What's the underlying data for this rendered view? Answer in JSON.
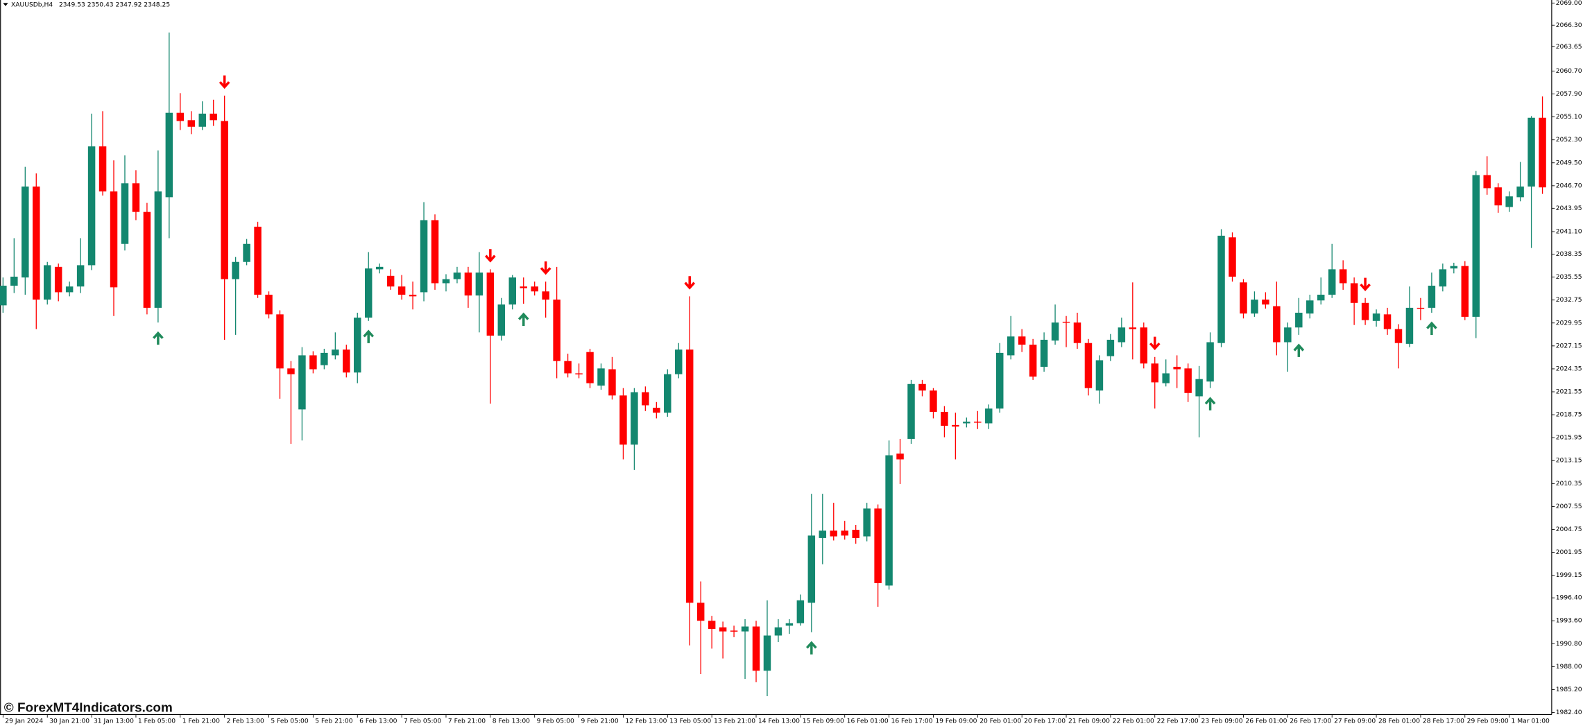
{
  "chart_data": {
    "type": "candlestick",
    "title": "XAUUSDb,H4",
    "quote": "2349.53 2350.43 2347.92 2348.25",
    "watermark": "© ForexMT4Indicators.com",
    "up_color": "#13876f",
    "down_color": "#ff0000",
    "buy_color": "#1f8a5b",
    "sell_color": "#ff0000",
    "categories": [
      "29 Jan 2024",
      null,
      null,
      null,
      "30 Jan 21:00",
      null,
      null,
      null,
      "31 Jan 13:00",
      null,
      null,
      null,
      "1 Feb 05:00",
      null,
      null,
      null,
      "1 Feb 21:00",
      null,
      null,
      null,
      "2 Feb 13:00",
      null,
      null,
      null,
      "5 Feb 05:00",
      null,
      null,
      null,
      "5 Feb 21:00",
      null,
      null,
      null,
      "6 Feb 13:00",
      null,
      null,
      null,
      "7 Feb 05:00",
      null,
      null,
      null,
      "7 Feb 21:00",
      null,
      null,
      null,
      "8 Feb 13:00",
      null,
      null,
      null,
      "9 Feb 05:00",
      null,
      null,
      null,
      "9 Feb 21:00",
      null,
      null,
      null,
      "12 Feb 13:00",
      null,
      null,
      null,
      "13 Feb 05:00",
      null,
      null,
      null,
      "13 Feb 21:00",
      null,
      null,
      null,
      "14 Feb 13:00",
      null,
      null,
      null,
      "15 Feb 09:00",
      null,
      null,
      null,
      "16 Feb 01:00",
      null,
      null,
      null,
      "16 Feb 17:00",
      null,
      null,
      null,
      "19 Feb 09:00",
      null,
      null,
      null,
      "20 Feb 01:00",
      null,
      null,
      null,
      "20 Feb 17:00",
      null,
      null,
      null,
      "21 Feb 09:00",
      null,
      null,
      null,
      "22 Feb 01:00",
      null,
      null,
      null,
      "22 Feb 17:00",
      null,
      null,
      null,
      "23 Feb 09:00",
      null,
      null,
      null,
      "26 Feb 01:00",
      null,
      null,
      null,
      "26 Feb 17:00",
      null,
      null,
      null,
      "27 Feb 09:00",
      null,
      null,
      null,
      "28 Feb 01:00",
      null,
      null,
      null,
      "28 Feb 17:00",
      null,
      null,
      null,
      "29 Feb 09:00",
      null,
      null,
      null,
      "1 Mar 01:00",
      null,
      null,
      null
    ],
    "open": [
      2032.1,
      2034.5,
      2035.5,
      2046.6,
      2032.8,
      2036.8,
      2033.7,
      2034.4,
      2037.0,
      2051.5,
      2046.0,
      2039.6,
      2047.0,
      2043.5,
      2031.8,
      2045.3,
      2055.6,
      2054.7,
      2053.9,
      2055.5,
      2054.6,
      2035.3,
      2037.4,
      2041.7,
      2033.4,
      2031.0,
      2024.4,
      2019.4,
      2026.0,
      2024.8,
      2026.0,
      2026.7,
      2023.9,
      2030.6,
      2036.5,
      2035.7,
      2034.4,
      2033.4,
      2033.7,
      2042.5,
      2034.8,
      2035.3,
      2036.1,
      2033.3,
      2036.1,
      2028.4,
      2032.2,
      2034.4,
      2034.4,
      2033.8,
      2032.8,
      2025.3,
      2023.8,
      2026.4,
      2022.3,
      2024.3,
      2021.1,
      2015.1,
      2021.5,
      2019.6,
      2019.0,
      2023.7,
      2026.7,
      1995.8,
      1993.6,
      1992.8,
      1992.4,
      1992.3,
      1992.9,
      1987.5,
      1991.8,
      1993.0,
      1993.3,
      1995.8,
      2003.7,
      2004.6,
      2004.6,
      2004.7,
      2003.9,
      2007.3,
      1997.9,
      2014.0,
      2015.8,
      2022.5,
      2021.7,
      2019.1,
      2017.5,
      2017.7,
      2017.9,
      2017.7,
      2019.5,
      2026.0,
      2028.3,
      2027.3,
      2024.6,
      2027.8,
      2030.1,
      2030.0,
      2027.5,
      2021.7,
      2025.9,
      2027.6,
      2029.4,
      2029.4,
      2025.0,
      2022.6,
      2024.6,
      2024.4,
      2021.0,
      2022.8,
      2027.5,
      2040.4,
      2034.9,
      2031.1,
      2032.8,
      2032.0,
      2027.6,
      2029.4,
      2031.1,
      2032.7,
      2033.4,
      2036.5,
      2034.8,
      2032.4,
      2030.2,
      2031.0,
      2029.2,
      2027.4,
      2031.8,
      2031.8,
      2034.4,
      2036.6,
      2036.9,
      2030.7,
      2048.0,
      2046.5,
      2044.1,
      2045.3,
      2046.6,
      2055.0
    ],
    "high": [
      2035.5,
      2040.3,
      2049.0,
      2048.2,
      2037.4,
      2037.2,
      2035.0,
      2040.3,
      2055.5,
      2055.8,
      2049.8,
      2050.4,
      2048.6,
      2044.6,
      2051.0,
      2065.4,
      2058.0,
      2055.8,
      2057.0,
      2057.2,
      2057.7,
      2038.0,
      2040.2,
      2042.3,
      2033.8,
      2031.5,
      2025.3,
      2027.0,
      2026.5,
      2026.8,
      2028.8,
      2027.3,
      2031.2,
      2038.6,
      2037.2,
      2036.5,
      2035.8,
      2035.0,
      2044.7,
      2043.2,
      2035.9,
      2036.8,
      2036.8,
      2038.6,
      2036.5,
      2033.0,
      2035.8,
      2035.5,
      2035.0,
      2035.0,
      2036.8,
      2026.2,
      2025.0,
      2026.8,
      2025.0,
      2025.8,
      2022.0,
      2022.0,
      2022.2,
      2020.3,
      2024.3,
      2027.5,
      2033.2,
      1998.4,
      1994.2,
      1993.5,
      1993.0,
      1993.8,
      1993.6,
      1996.1,
      1993.8,
      1993.8,
      1996.8,
      2009.1,
      2009.1,
      2008.0,
      2005.8,
      2005.3,
      2008.0,
      2007.8,
      2015.6,
      2015.8,
      2023.0,
      2023.0,
      2022.0,
      2019.8,
      2019.0,
      2018.4,
      2019.2,
      2020.0,
      2027.5,
      2030.8,
      2029.2,
      2028.0,
      2028.8,
      2032.2,
      2030.8,
      2031.2,
      2028.0,
      2026.0,
      2028.6,
      2030.6,
      2034.9,
      2030.0,
      2025.8,
      2025.5,
      2026.0,
      2025.0,
      2024.7,
      2028.8,
      2041.4,
      2041.0,
      2035.3,
      2033.8,
      2033.7,
      2035.0,
      2030.0,
      2033.0,
      2033.4,
      2035.5,
      2039.6,
      2037.6,
      2035.5,
      2033.0,
      2031.6,
      2031.8,
      2029.8,
      2034.4,
      2033.0,
      2036.1,
      2037.2,
      2037.3,
      2037.5,
      2048.5,
      2050.3,
      2047.0,
      2046.0,
      2049.6,
      2055.2,
      2057.6
    ],
    "low": [
      2031.2,
      2033.6,
      2033.4,
      2029.2,
      2032.2,
      2032.6,
      2033.2,
      2033.6,
      2036.4,
      2045.5,
      2030.8,
      2038.8,
      2042.5,
      2031.0,
      2030.0,
      2040.3,
      2053.5,
      2053.0,
      2053.5,
      2054.0,
      2027.9,
      2028.5,
      2037.0,
      2033.0,
      2030.5,
      2020.7,
      2015.2,
      2015.6,
      2023.8,
      2024.3,
      2025.5,
      2023.3,
      2022.6,
      2030.2,
      2036.0,
      2034.0,
      2032.8,
      2031.6,
      2032.6,
      2034.0,
      2033.8,
      2034.8,
      2031.8,
      2028.8,
      2020.1,
      2027.8,
      2031.6,
      2032.3,
      2033.3,
      2030.6,
      2023.2,
      2023.3,
      2023.2,
      2022.0,
      2021.8,
      2020.6,
      2013.3,
      2012.0,
      2019.2,
      2018.3,
      2018.5,
      2023.2,
      1990.6,
      1987.1,
      1990.2,
      1989.0,
      1991.6,
      1986.5,
      1986.1,
      1984.4,
      1991.0,
      1992.0,
      1993.0,
      1992.2,
      2000.5,
      2003.4,
      2003.5,
      2003.0,
      2003.3,
      1995.3,
      1997.4,
      2010.3,
      2015.2,
      2021.0,
      2018.3,
      2016.0,
      2013.3,
      2017.2,
      2017.0,
      2017.0,
      2019.0,
      2025.5,
      2026.4,
      2023.0,
      2024.0,
      2027.3,
      2027.0,
      2026.8,
      2021.1,
      2020.1,
      2025.3,
      2027.0,
      2025.5,
      2024.4,
      2019.5,
      2022.2,
      2022.0,
      2020.3,
      2016.0,
      2022.0,
      2027.0,
      2035.0,
      2030.5,
      2030.7,
      2031.7,
      2026.0,
      2024.0,
      2028.5,
      2030.5,
      2032.2,
      2033.0,
      2034.0,
      2029.7,
      2029.7,
      2029.5,
      2028.5,
      2024.4,
      2027.0,
      2030.3,
      2031.2,
      2033.8,
      2036.0,
      2030.3,
      2028.1,
      2045.6,
      2043.4,
      2043.5,
      2044.8,
      2039.1,
      2045.7
    ],
    "close": [
      2034.5,
      2035.6,
      2046.6,
      2032.8,
      2037.0,
      2033.7,
      2034.4,
      2037.0,
      2051.5,
      2046.0,
      2034.3,
      2047.0,
      2043.5,
      2031.8,
      2046.0,
      2055.6,
      2054.6,
      2053.9,
      2055.5,
      2054.7,
      2035.3,
      2037.4,
      2039.6,
      2033.4,
      2031.0,
      2024.4,
      2023.7,
      2026.0,
      2024.3,
      2026.3,
      2026.7,
      2023.9,
      2030.6,
      2036.6,
      2036.8,
      2034.4,
      2033.4,
      2033.2,
      2042.5,
      2034.8,
      2035.3,
      2036.1,
      2033.3,
      2036.1,
      2028.4,
      2032.2,
      2035.5,
      2034.2,
      2033.8,
      2032.8,
      2025.3,
      2023.8,
      2023.7,
      2022.6,
      2024.4,
      2021.1,
      2015.1,
      2021.5,
      2019.9,
      2019.0,
      2023.7,
      2026.7,
      1995.8,
      1993.6,
      1992.6,
      1992.3,
      1992.3,
      1992.9,
      1987.5,
      1991.8,
      1992.8,
      1993.3,
      1996.1,
      2004.0,
      2004.6,
      2003.9,
      2004.0,
      2003.7,
      2007.3,
      1998.2,
      2013.8,
      2013.3,
      2022.5,
      2021.7,
      2019.1,
      2017.4,
      2017.3,
      2017.9,
      2017.8,
      2019.5,
      2026.3,
      2028.3,
      2027.3,
      2023.4,
      2027.9,
      2030.0,
      2030.0,
      2027.5,
      2022.0,
      2025.4,
      2027.9,
      2029.4,
      2029.2,
      2025.0,
      2022.7,
      2023.8,
      2024.3,
      2021.4,
      2023.1,
      2027.6,
      2040.6,
      2035.6,
      2031.1,
      2032.8,
      2032.2,
      2027.6,
      2029.4,
      2031.2,
      2032.7,
      2033.4,
      2036.5,
      2034.8,
      2032.4,
      2030.3,
      2031.1,
      2029.2,
      2027.5,
      2031.8,
      2031.7,
      2034.5,
      2036.5,
      2036.9,
      2030.7,
      2048.0,
      2046.4,
      2044.3,
      2045.4,
      2046.6,
      2055.0,
      2046.5
    ],
    "buy_signals": [
      14,
      33,
      47,
      73,
      109,
      117,
      129
    ],
    "sell_signals": [
      20,
      44,
      49,
      62,
      104,
      123
    ],
    "ylim": [
      1982.16,
      2069.37
    ],
    "yticks": [
      {
        "value": 2069.0,
        "label": "2069.00"
      },
      {
        "value": 2066.3,
        "label": "2066.30"
      },
      {
        "value": 2063.65,
        "label": "2063.65"
      },
      {
        "value": 2060.7,
        "label": "2060.70"
      },
      {
        "value": 2057.9,
        "label": "2057.90"
      },
      {
        "value": 2055.1,
        "label": "2055.10"
      },
      {
        "value": 2052.3,
        "label": "2052.30"
      },
      {
        "value": 2049.5,
        "label": "2049.50"
      },
      {
        "value": 2046.7,
        "label": "2046.70"
      },
      {
        "value": 2043.95,
        "label": "2043.95"
      },
      {
        "value": 2041.1,
        "label": "2041.10"
      },
      {
        "value": 2038.35,
        "label": "2038.35"
      },
      {
        "value": 2035.55,
        "label": "2035.55"
      },
      {
        "value": 2032.75,
        "label": "2032.75"
      },
      {
        "value": 2029.95,
        "label": "2029.95"
      },
      {
        "value": 2027.15,
        "label": "2027.15"
      },
      {
        "value": 2024.35,
        "label": "2024.35"
      },
      {
        "value": 2021.55,
        "label": "2021.55"
      },
      {
        "value": 2018.75,
        "label": "2018.75"
      },
      {
        "value": 2015.95,
        "label": "2015.95"
      },
      {
        "value": 2013.15,
        "label": "2013.15"
      },
      {
        "value": 2010.35,
        "label": "2010.35"
      },
      {
        "value": 2007.55,
        "label": "2007.55"
      },
      {
        "value": 2004.75,
        "label": "2004.75"
      },
      {
        "value": 2001.95,
        "label": "2001.95"
      },
      {
        "value": 1999.15,
        "label": "1999.15"
      },
      {
        "value": 1996.4,
        "label": "1996.40"
      },
      {
        "value": 1993.6,
        "label": "1993.60"
      },
      {
        "value": 1990.8,
        "label": "1990.80"
      },
      {
        "value": 1988.0,
        "label": "1988.00"
      },
      {
        "value": 1985.2,
        "label": "1985.20"
      },
      {
        "value": 1982.4,
        "label": "1982.40"
      }
    ]
  }
}
